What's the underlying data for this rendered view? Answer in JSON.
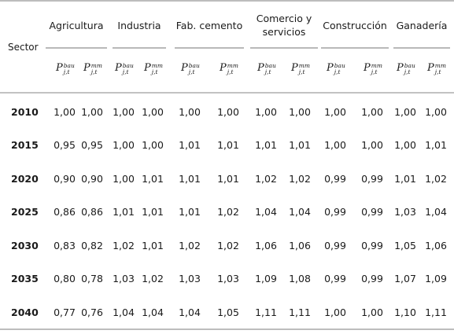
{
  "header": {
    "sector_label": "Sector",
    "groups": [
      {
        "label": "Agricultura"
      },
      {
        "label": "Industria"
      },
      {
        "label": "Fab. cemento"
      },
      {
        "label": "Comercio y servicios",
        "line1": "Comercio y",
        "line2": "servicios"
      },
      {
        "label": "Construcción"
      },
      {
        "label": "Ganadería"
      }
    ],
    "symbols": [
      {
        "base": "P",
        "sup": "bau",
        "sub": "j,t"
      },
      {
        "base": "P",
        "sup": "mm",
        "sub": "j,t"
      }
    ]
  },
  "rows": [
    {
      "year": "2010",
      "values": [
        "1,00",
        "1,00",
        "1,00",
        "1,00",
        "1,00",
        "1,00",
        "1,00",
        "1,00",
        "1,00",
        "1,00",
        "1,00",
        "1,00"
      ]
    },
    {
      "year": "2015",
      "values": [
        "0,95",
        "0,95",
        "1,00",
        "1,00",
        "1,01",
        "1,01",
        "1,01",
        "1,01",
        "1,00",
        "1,00",
        "1,00",
        "1,01"
      ]
    },
    {
      "year": "2020",
      "values": [
        "0,90",
        "0,90",
        "1,00",
        "1,01",
        "1,01",
        "1,01",
        "1,02",
        "1,02",
        "0,99",
        "0,99",
        "1,01",
        "1,02"
      ]
    },
    {
      "year": "2025",
      "values": [
        "0,86",
        "0,86",
        "1,01",
        "1,01",
        "1,01",
        "1,02",
        "1,04",
        "1,04",
        "0,99",
        "0,99",
        "1,03",
        "1,04"
      ]
    },
    {
      "year": "2030",
      "values": [
        "0,83",
        "0,82",
        "1,02",
        "1,01",
        "1,02",
        "1,02",
        "1,06",
        "1,06",
        "0,99",
        "0,99",
        "1,05",
        "1,06"
      ]
    },
    {
      "year": "2035",
      "values": [
        "0,80",
        "0,78",
        "1,03",
        "1,02",
        "1,03",
        "1,03",
        "1,09",
        "1,08",
        "0,99",
        "0,99",
        "1,07",
        "1,09"
      ]
    },
    {
      "year": "2040",
      "values": [
        "0,77",
        "0,76",
        "1,04",
        "1,04",
        "1,04",
        "1,05",
        "1,11",
        "1,11",
        "1,00",
        "1,00",
        "1,10",
        "1,11"
      ]
    }
  ]
}
